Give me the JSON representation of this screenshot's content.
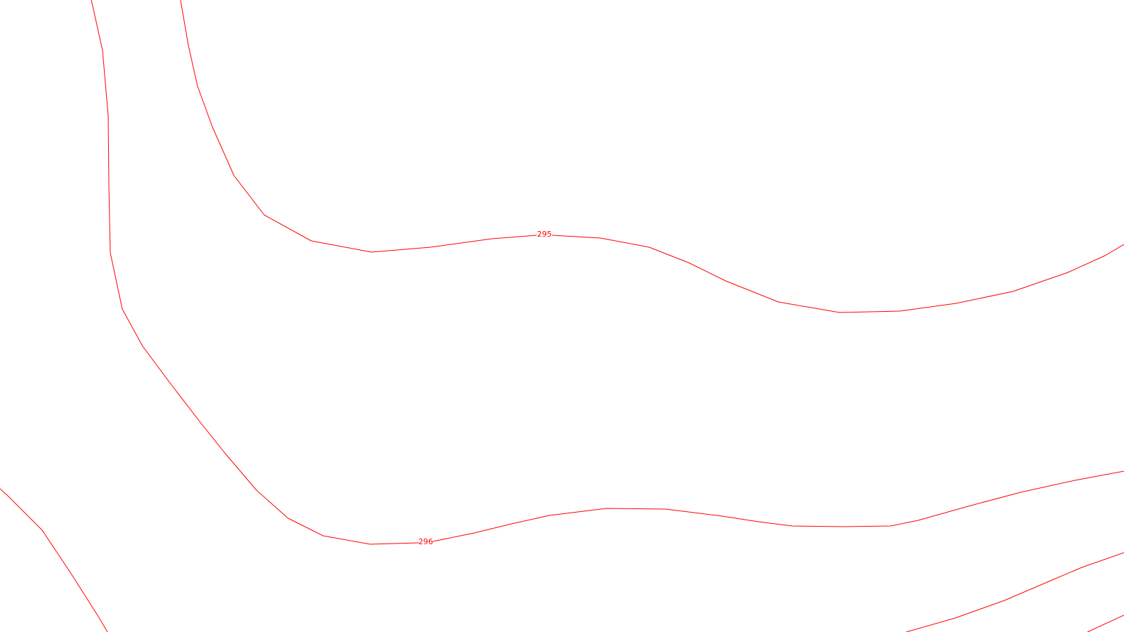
{
  "map": {
    "contour_color": "#ff0000",
    "background_color": "#ffffff",
    "contours": [
      {
        "id": "contour-left",
        "label": ""
      },
      {
        "id": "contour-295",
        "label": "295"
      },
      {
        "id": "contour-296",
        "label": "296"
      },
      {
        "id": "contour-bottom-left",
        "label": ""
      },
      {
        "id": "contour-bottom-right-a",
        "label": ""
      },
      {
        "id": "contour-bottom-right-b",
        "label": ""
      }
    ]
  }
}
